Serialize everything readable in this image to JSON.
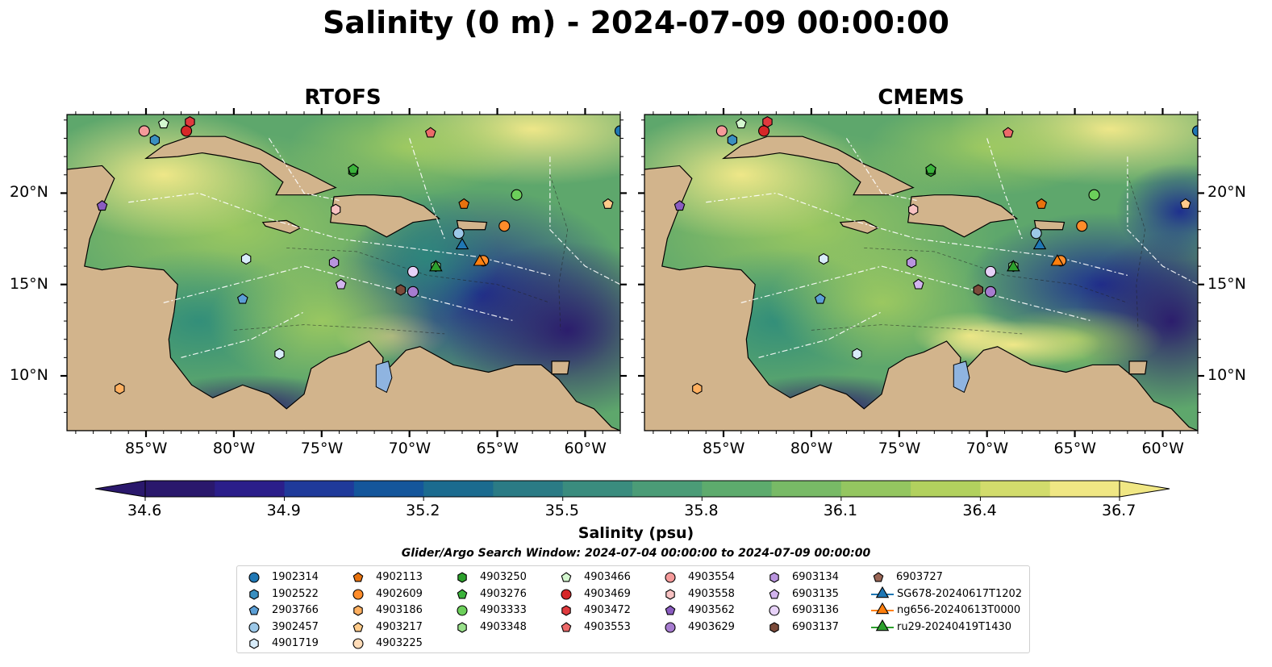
{
  "title": "Salinity (0 m) - 2024-07-09 00:00:00",
  "panels": [
    {
      "title": "RTOFS"
    },
    {
      "title": "CMEMS"
    }
  ],
  "axes": {
    "lon_ticks": [
      "85°W",
      "80°W",
      "75°W",
      "70°W",
      "65°W",
      "60°W"
    ],
    "lat_ticks": [
      "20°N",
      "15°N",
      "10°N"
    ],
    "lon_range": [
      -89.5,
      -58.0
    ],
    "lat_range": [
      7.0,
      24.3
    ]
  },
  "colorbar": {
    "label": "Salinity (psu)",
    "ticks": [
      "34.6",
      "34.9",
      "35.2",
      "35.5",
      "35.8",
      "36.1",
      "36.4",
      "36.7"
    ],
    "range": [
      34.6,
      36.7
    ],
    "extend": "both",
    "colormap": "haline",
    "colors": [
      "#2a186c",
      "#2b1e8a",
      "#1f3a9a",
      "#14569b",
      "#1b6b8f",
      "#2b7b85",
      "#3a8c7e",
      "#4b9c77",
      "#5dab6d",
      "#78ba66",
      "#94c660",
      "#b2d15e",
      "#d2dc6c",
      "#f0e784"
    ]
  },
  "land_color": "#d2b48c",
  "search_window": "Glider/Argo Search Window: 2024-07-04 00:00:00 to 2024-07-09 00:00:00",
  "legend": [
    {
      "label": "1902314",
      "marker": "circle",
      "color": "#1f77b4"
    },
    {
      "label": "1902522",
      "marker": "hexagon",
      "color": "#3a8fc0"
    },
    {
      "label": "2903766",
      "marker": "pentagon",
      "color": "#5b9fd6"
    },
    {
      "label": "3902457",
      "marker": "circle",
      "color": "#9cc8e8"
    },
    {
      "label": "4901719",
      "marker": "hexagon",
      "color": "#d8ecfa"
    },
    {
      "label": "4902113",
      "marker": "pentagon",
      "color": "#e8720e"
    },
    {
      "label": "4902609",
      "marker": "circle",
      "color": "#ff8c2a"
    },
    {
      "label": "4903186",
      "marker": "hexagon",
      "color": "#ffb060"
    },
    {
      "label": "4903217",
      "marker": "pentagon",
      "color": "#ffcb8a"
    },
    {
      "label": "4903225",
      "marker": "circle",
      "color": "#ffdcb8"
    },
    {
      "label": "4903250",
      "marker": "hexagon",
      "color": "#2ca02c"
    },
    {
      "label": "4903276",
      "marker": "pentagon",
      "color": "#3bb33b"
    },
    {
      "label": "4903333",
      "marker": "circle",
      "color": "#6ccf5a"
    },
    {
      "label": "4903348",
      "marker": "hexagon",
      "color": "#98e08a"
    },
    {
      "label": "4903466",
      "marker": "pentagon",
      "color": "#d4f7cf"
    },
    {
      "label": "4903469",
      "marker": "circle",
      "color": "#d62728"
    },
    {
      "label": "4903472",
      "marker": "hexagon",
      "color": "#e03a3e"
    },
    {
      "label": "4903553",
      "marker": "pentagon",
      "color": "#ec6a6a"
    },
    {
      "label": "4903554",
      "marker": "circle",
      "color": "#f59a9a"
    },
    {
      "label": "4903558",
      "marker": "hexagon",
      "color": "#f8c2c2"
    },
    {
      "label": "4903562",
      "marker": "pentagon",
      "color": "#8a5cc0"
    },
    {
      "label": "4903629",
      "marker": "circle",
      "color": "#a77cd0"
    },
    {
      "label": "6903134",
      "marker": "hexagon",
      "color": "#b994de"
    },
    {
      "label": "6903135",
      "marker": "pentagon",
      "color": "#d2b4ee"
    },
    {
      "label": "6903136",
      "marker": "circle",
      "color": "#e7d2f8"
    },
    {
      "label": "6903137",
      "marker": "hexagon",
      "color": "#7b4a3a"
    },
    {
      "label": "6903727",
      "marker": "pentagon",
      "color": "#9a6656"
    },
    {
      "label": "SG678-20240617T1202",
      "marker": "triangle",
      "color": "#1f77b4"
    },
    {
      "label": "ng656-20240613T0000",
      "marker": "triangle",
      "color": "#ff7f0e"
    },
    {
      "label": "ru29-20240419T1430",
      "marker": "triangle",
      "color": "#2ca02c"
    }
  ],
  "floats": [
    {
      "id": "1902314",
      "lon": -58.0,
      "lat": 23.4
    },
    {
      "id": "1902522",
      "lon": -84.5,
      "lat": 22.9
    },
    {
      "id": "2903766",
      "lon": -79.5,
      "lat": 14.2
    },
    {
      "id": "3902457",
      "lon": -67.2,
      "lat": 17.8
    },
    {
      "id": "4901719",
      "lon": -79.3,
      "lat": 16.4
    },
    {
      "id": "4901719",
      "lon": -77.4,
      "lat": 11.2
    },
    {
      "id": "4902113",
      "lon": -66.9,
      "lat": 19.4
    },
    {
      "id": "4902609",
      "lon": -64.6,
      "lat": 18.2
    },
    {
      "id": "4902609",
      "lon": -65.8,
      "lat": 16.3
    },
    {
      "id": "4903186",
      "lon": -86.5,
      "lat": 9.3
    },
    {
      "id": "4903217",
      "lon": -58.7,
      "lat": 19.4
    },
    {
      "id": "4903250",
      "lon": -73.2,
      "lat": 21.2
    },
    {
      "id": "4903276",
      "lon": -73.2,
      "lat": 21.3
    },
    {
      "id": "4903333",
      "lon": -63.9,
      "lat": 19.9
    },
    {
      "id": "4903348",
      "lon": -68.5,
      "lat": 16.0
    },
    {
      "id": "4903466",
      "lon": -84.0,
      "lat": 23.8
    },
    {
      "id": "4903469",
      "lon": -82.7,
      "lat": 23.4
    },
    {
      "id": "4903472",
      "lon": -82.5,
      "lat": 23.9
    },
    {
      "id": "4903553",
      "lon": -68.8,
      "lat": 23.3
    },
    {
      "id": "4903554",
      "lon": -85.1,
      "lat": 23.4
    },
    {
      "id": "4903558",
      "lon": -74.2,
      "lat": 19.1
    },
    {
      "id": "4903562",
      "lon": -87.5,
      "lat": 19.3
    },
    {
      "id": "4903629",
      "lon": -69.8,
      "lat": 14.6
    },
    {
      "id": "6903134",
      "lon": -74.3,
      "lat": 16.2
    },
    {
      "id": "6903135",
      "lon": -73.9,
      "lat": 15.0
    },
    {
      "id": "6903136",
      "lon": -69.8,
      "lat": 15.7
    },
    {
      "id": "6903137",
      "lon": -70.5,
      "lat": 14.7
    },
    {
      "id": "SG678-20240617T1202",
      "lon": -67.0,
      "lat": 17.2
    },
    {
      "id": "ng656-20240613T0000",
      "lon": -66.0,
      "lat": 16.3
    },
    {
      "id": "ru29-20240419T1430",
      "lon": -68.5,
      "lat": 16.0
    }
  ]
}
